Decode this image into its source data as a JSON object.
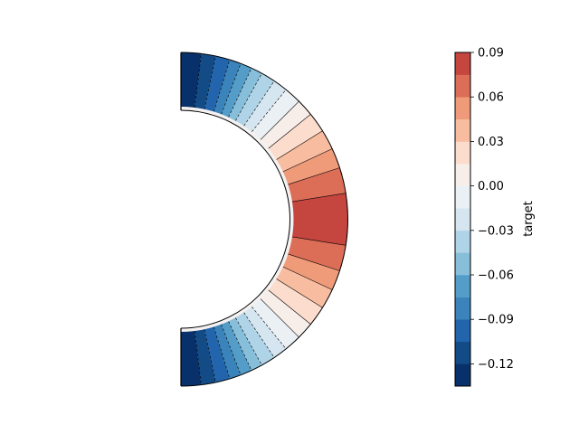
{
  "chart_data": {
    "type": "contourf",
    "title": "",
    "domain": "half-annulus",
    "colorbar": {
      "label": "target",
      "ticks": [
        "0.09",
        "0.06",
        "0.03",
        "0.00",
        "−0.03",
        "−0.06",
        "−0.09",
        "−0.12"
      ],
      "tick_values": [
        0.09,
        0.06,
        0.03,
        0.0,
        -0.03,
        -0.06,
        -0.09,
        -0.12
      ],
      "range": [
        -0.135,
        0.09
      ],
      "levels": [
        -0.135,
        -0.12,
        -0.105,
        -0.09,
        -0.075,
        -0.06,
        -0.045,
        -0.03,
        -0.015,
        0.0,
        0.015,
        0.03,
        0.045,
        0.06,
        0.075,
        0.09
      ],
      "colors": [
        "#08306a",
        "#134b87",
        "#2265ac",
        "#3a84bb",
        "#539dc8",
        "#87beda",
        "#b0d4e7",
        "#d6e6f1",
        "#ebf0f4",
        "#f7eee9",
        "#fcdccc",
        "#f8bda0",
        "#ef9b7a",
        "#dc6e57",
        "#c5453f"
      ]
    },
    "colormap": "RdBu_r",
    "field_profile": {
      "angle_deg": [
        0,
        9,
        18,
        25,
        32,
        39,
        45,
        51,
        56,
        61,
        65,
        69,
        73,
        78,
        83,
        90
      ],
      "value": [
        0.09,
        0.075,
        0.06,
        0.045,
        0.03,
        0.015,
        0.0,
        -0.015,
        -0.03,
        -0.045,
        -0.06,
        -0.075,
        -0.09,
        -0.105,
        -0.12,
        -0.13
      ]
    }
  }
}
